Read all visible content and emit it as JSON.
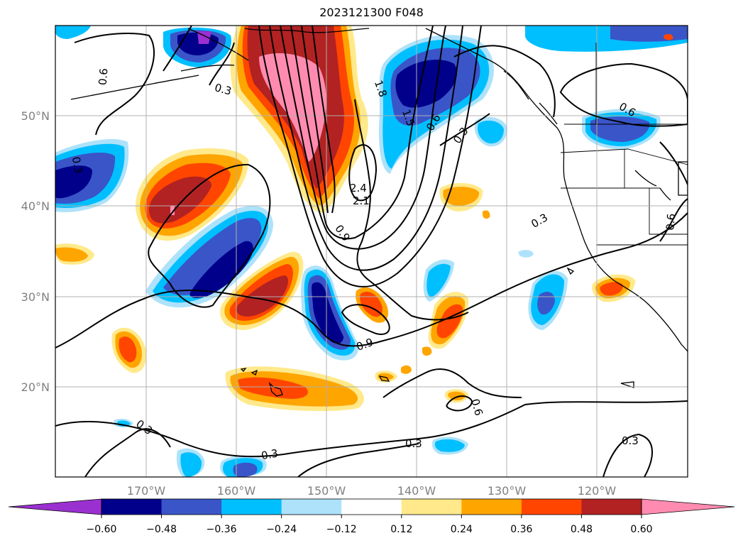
{
  "title": "2023121300 F048",
  "lat_labels": [
    "50°N",
    "40°N",
    "30°N",
    "20°N"
  ],
  "lon_labels": [
    "170°W",
    "160°W",
    "150°W",
    "140°W",
    "130°W",
    "120°W"
  ],
  "colorbar": {
    "ticks": [
      "−0.60",
      "−0.48",
      "−0.36",
      "−0.24",
      "−0.12",
      "0.12",
      "0.24",
      "0.36",
      "0.48",
      "0.60"
    ],
    "colors": [
      "#9b30d0",
      "#00008b",
      "#3a55c8",
      "#00bfff",
      "#ade2fa",
      "#ffffff",
      "#ffe98a",
      "#ffa500",
      "#ff4500",
      "#b22222",
      "#ff8cb0"
    ]
  },
  "contour_labels": [
    "0.6",
    "0.3",
    "0.3",
    "0.3",
    "0.3",
    "0.3",
    "0.3",
    "0.6",
    "0.6",
    "0.6",
    "0.6",
    "0.9",
    "0.9",
    "2.4",
    "2.1",
    "1.8",
    "1.5",
    "0.3",
    "0.3"
  ]
}
